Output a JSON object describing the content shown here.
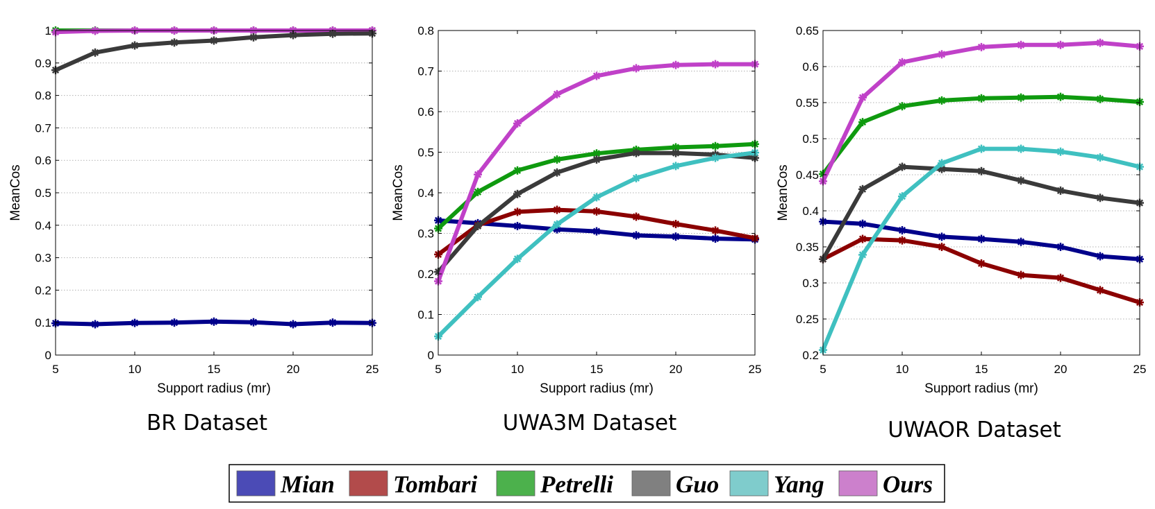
{
  "colors": {
    "Mian": "#00008b",
    "Tombari": "#8b0000",
    "Petrelli": "#0f9a0f",
    "Guo": "#3a3a3a",
    "Yang": "#3fc0c0",
    "Ours": "#c041c8"
  },
  "legend": {
    "entries": [
      "Mian",
      "Tombari",
      "Petrelli",
      "Guo",
      "Yang",
      "Ours"
    ],
    "swatch_colors": [
      "#4b4bb6",
      "#b24b4b",
      "#4cb14c",
      "#808080",
      "#7fcccc",
      "#cc80cc"
    ]
  },
  "chart_data": [
    {
      "type": "line",
      "title": "BR Dataset",
      "xlabel": "Support radius (mr)",
      "ylabel": "MeanCos",
      "xlim": [
        5,
        25
      ],
      "ylim": [
        0,
        1
      ],
      "xticks": [
        "5",
        "10",
        "15",
        "20",
        "25"
      ],
      "yticks": [
        "0",
        "0.1",
        "0.2",
        "0.3",
        "0.4",
        "0.5",
        "0.6",
        "0.7",
        "0.8",
        "0.9",
        "1"
      ],
      "grid": true,
      "x": [
        5,
        7.5,
        10,
        12.5,
        15,
        17.5,
        20,
        22.5,
        25
      ],
      "series": [
        {
          "name": "Petrelli",
          "values": [
            1.0,
            1.0,
            1.0,
            1.0,
            1.0,
            1.0,
            1.0,
            1.0,
            1.0
          ]
        },
        {
          "name": "Ours",
          "values": [
            0.995,
            0.999,
            1.0,
            1.0,
            1.0,
            1.0,
            1.0,
            1.0,
            1.0
          ]
        },
        {
          "name": "Guo",
          "values": [
            0.878,
            0.932,
            0.954,
            0.963,
            0.969,
            0.979,
            0.986,
            0.99,
            0.991
          ]
        },
        {
          "name": "Mian",
          "values": [
            0.098,
            0.095,
            0.099,
            0.1,
            0.103,
            0.101,
            0.095,
            0.1,
            0.099
          ]
        }
      ]
    },
    {
      "type": "line",
      "title": "UWA3M Dataset",
      "xlabel": "Support radius (mr)",
      "ylabel": "MeanCos",
      "xlim": [
        5,
        25
      ],
      "ylim": [
        0,
        0.8
      ],
      "xticks": [
        "5",
        "10",
        "15",
        "20",
        "25"
      ],
      "yticks": [
        "0",
        "0.1",
        "0.2",
        "0.3",
        "0.4",
        "0.5",
        "0.6",
        "0.7",
        "0.8"
      ],
      "grid": true,
      "x": [
        5,
        7.5,
        10,
        12.5,
        15,
        17.5,
        20,
        22.5,
        25
      ],
      "series": [
        {
          "name": "Mian",
          "values": [
            0.332,
            0.325,
            0.318,
            0.31,
            0.305,
            0.295,
            0.292,
            0.287,
            0.285
          ]
        },
        {
          "name": "Tombari",
          "values": [
            0.248,
            0.32,
            0.353,
            0.358,
            0.354,
            0.341,
            0.323,
            0.307,
            0.288
          ]
        },
        {
          "name": "Petrelli",
          "values": [
            0.312,
            0.402,
            0.455,
            0.482,
            0.497,
            0.506,
            0.512,
            0.515,
            0.52
          ]
        },
        {
          "name": "Guo",
          "values": [
            0.205,
            0.318,
            0.397,
            0.45,
            0.482,
            0.498,
            0.498,
            0.494,
            0.486
          ]
        },
        {
          "name": "Yang",
          "values": [
            0.046,
            0.143,
            0.237,
            0.322,
            0.389,
            0.436,
            0.466,
            0.486,
            0.499
          ]
        },
        {
          "name": "Ours",
          "values": [
            0.182,
            0.445,
            0.571,
            0.643,
            0.688,
            0.707,
            0.715,
            0.717,
            0.717
          ]
        }
      ]
    },
    {
      "type": "line",
      "title": "UWAOR Dataset",
      "xlabel": "Support radius (mr)",
      "ylabel": "MeanCos",
      "xlim": [
        5,
        25
      ],
      "ylim": [
        0.2,
        0.65
      ],
      "xticks": [
        "5",
        "10",
        "15",
        "20",
        "25"
      ],
      "yticks": [
        "0.2",
        "0.25",
        "0.3",
        "0.35",
        "0.4",
        "0.45",
        "0.5",
        "0.55",
        "0.6",
        "0.65"
      ],
      "grid": true,
      "x": [
        5,
        7.5,
        10,
        12.5,
        15,
        17.5,
        20,
        22.5,
        25
      ],
      "series": [
        {
          "name": "Mian",
          "values": [
            0.385,
            0.382,
            0.373,
            0.364,
            0.361,
            0.357,
            0.35,
            0.337,
            0.333
          ]
        },
        {
          "name": "Tombari",
          "values": [
            0.333,
            0.361,
            0.359,
            0.35,
            0.327,
            0.311,
            0.307,
            0.29,
            0.273
          ]
        },
        {
          "name": "Petrelli",
          "values": [
            0.451,
            0.523,
            0.545,
            0.553,
            0.556,
            0.557,
            0.558,
            0.555,
            0.551
          ]
        },
        {
          "name": "Guo",
          "values": [
            0.333,
            0.43,
            0.461,
            0.458,
            0.455,
            0.442,
            0.428,
            0.418,
            0.411
          ]
        },
        {
          "name": "Yang",
          "values": [
            0.207,
            0.339,
            0.42,
            0.466,
            0.486,
            0.486,
            0.482,
            0.474,
            0.461
          ]
        },
        {
          "name": "Ours",
          "values": [
            0.441,
            0.557,
            0.606,
            0.617,
            0.627,
            0.63,
            0.63,
            0.633,
            0.628
          ]
        }
      ]
    }
  ]
}
